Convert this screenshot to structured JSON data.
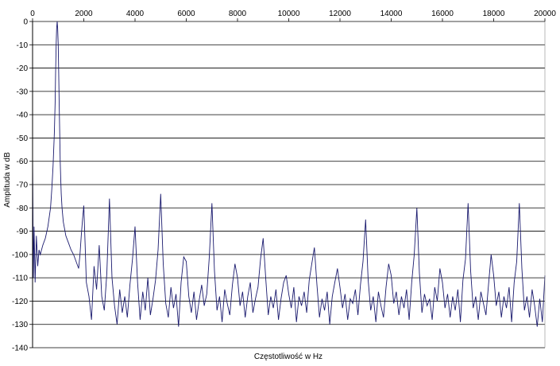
{
  "chart_data": {
    "type": "line",
    "title": "",
    "xlabel": "Częstotliwość w Hz",
    "ylabel": "Amplituda w dB",
    "xlim": [
      0,
      20000
    ],
    "ylim": [
      -140,
      0
    ],
    "x_ticks": [
      "0",
      "2000",
      "4000",
      "6000",
      "8000",
      "10000",
      "12000",
      "14000",
      "16000",
      "18000",
      "20000"
    ],
    "y_ticks": [
      "0",
      "-10",
      "-20",
      "-30",
      "-40",
      "-50",
      "-60",
      "-70",
      "-80",
      "-90",
      "-100",
      "-110",
      "-120",
      "-130",
      "-140"
    ],
    "x_axis_position": "top",
    "grid": "horizontal",
    "legend": "none",
    "colors": {
      "series": "#1a1a6e",
      "grid": "#000000",
      "axis": "#000000"
    },
    "series": [
      {
        "x": [
          0,
          30,
          60,
          100,
          150,
          200,
          250,
          300,
          400,
          500,
          600,
          700,
          750,
          800,
          850,
          880,
          900,
          920,
          940,
          960,
          980,
          1000,
          1020,
          1040,
          1060,
          1080,
          1100,
          1120,
          1150,
          1200,
          1250,
          1300,
          1400,
          1500,
          1600,
          1700,
          1800,
          1850,
          1900,
          1950,
          2000,
          2050,
          2100,
          2200,
          2300,
          2400,
          2500,
          2600,
          2700,
          2800,
          2900,
          3000,
          3100,
          3200,
          3300,
          3400,
          3500,
          3600,
          3700,
          3800,
          3900,
          4000,
          4100,
          4200,
          4300,
          4400,
          4500,
          4600,
          4700,
          4800,
          4900,
          5000,
          5100,
          5200,
          5300,
          5400,
          5500,
          5600,
          5700,
          5800,
          5900,
          6000,
          6100,
          6200,
          6300,
          6400,
          6500,
          6600,
          6700,
          6800,
          6900,
          7000,
          7100,
          7200,
          7300,
          7400,
          7500,
          7600,
          7700,
          7800,
          7900,
          8000,
          8100,
          8200,
          8300,
          8400,
          8500,
          8600,
          8700,
          8800,
          8900,
          9000,
          9100,
          9200,
          9300,
          9400,
          9500,
          9600,
          9700,
          9800,
          9900,
          10000,
          10100,
          10200,
          10300,
          10400,
          10500,
          10600,
          10700,
          10800,
          10900,
          11000,
          11100,
          11200,
          11300,
          11400,
          11500,
          11600,
          11700,
          11800,
          11900,
          12000,
          12100,
          12200,
          12300,
          12400,
          12500,
          12600,
          12700,
          12800,
          12900,
          13000,
          13100,
          13200,
          13300,
          13400,
          13500,
          13600,
          13700,
          13800,
          13900,
          14000,
          14100,
          14200,
          14300,
          14400,
          14500,
          14600,
          14700,
          14800,
          14900,
          15000,
          15100,
          15200,
          15300,
          15400,
          15500,
          15600,
          15700,
          15800,
          15900,
          16000,
          16100,
          16200,
          16300,
          16400,
          16500,
          16600,
          16700,
          16800,
          16900,
          17000,
          17100,
          17200,
          17300,
          17400,
          17500,
          17600,
          17700,
          17800,
          17900,
          18000,
          18100,
          18200,
          18300,
          18400,
          18500,
          18600,
          18700,
          18800,
          18900,
          19000,
          19100,
          19200,
          19300,
          19400,
          19500,
          19600,
          19700,
          19800,
          19900,
          20000
        ],
        "y": [
          -57,
          -110,
          -88,
          -112,
          -92,
          -105,
          -98,
          -100,
          -96,
          -93,
          -88,
          -80,
          -72,
          -62,
          -48,
          -35,
          -22,
          -10,
          -3,
          0,
          -3,
          -10,
          -22,
          -35,
          -48,
          -60,
          -68,
          -74,
          -80,
          -86,
          -89,
          -92,
          -95,
          -98,
          -100,
          -103,
          -106,
          -100,
          -92,
          -85,
          -79,
          -95,
          -112,
          -118,
          -128,
          -105,
          -115,
          -96,
          -118,
          -124,
          -108,
          -76,
          -110,
          -122,
          -130,
          -115,
          -125,
          -118,
          -127,
          -113,
          -102,
          -88,
          -112,
          -128,
          -116,
          -124,
          -110,
          -126,
          -119,
          -111,
          -98,
          -74,
          -104,
          -121,
          -127,
          -114,
          -123,
          -117,
          -131,
          -112,
          -101,
          -103,
          -118,
          -125,
          -116,
          -128,
          -120,
          -113,
          -122,
          -117,
          -101,
          -78,
          -107,
          -124,
          -118,
          -129,
          -115,
          -121,
          -126,
          -113,
          -104,
          -110,
          -122,
          -116,
          -127,
          -118,
          -112,
          -125,
          -119,
          -114,
          -102,
          -93,
          -110,
          -126,
          -118,
          -123,
          -115,
          -128,
          -119,
          -112,
          -109,
          -117,
          -123,
          -114,
          -129,
          -118,
          -122,
          -116,
          -125,
          -111,
          -104,
          -97,
          -113,
          -127,
          -119,
          -124,
          -116,
          -130,
          -118,
          -112,
          -106,
          -114,
          -123,
          -117,
          -128,
          -119,
          -121,
          -115,
          -126,
          -113,
          -103,
          -85,
          -111,
          -124,
          -118,
          -129,
          -116,
          -122,
          -127,
          -114,
          -104,
          -109,
          -121,
          -116,
          -126,
          -118,
          -123,
          -115,
          -128,
          -112,
          -100,
          -80,
          -108,
          -125,
          -117,
          -122,
          -119,
          -128,
          -114,
          -120,
          -106,
          -112,
          -123,
          -117,
          -127,
          -118,
          -124,
          -115,
          -129,
          -111,
          -102,
          -78,
          -107,
          -123,
          -118,
          -128,
          -116,
          -121,
          -126,
          -113,
          -100,
          -109,
          -122,
          -116,
          -127,
          -118,
          -123,
          -114,
          -129,
          -112,
          -103,
          -78,
          -106,
          -124,
          -118,
          -127,
          -115,
          -122,
          -131,
          -119,
          -129,
          -109
        ]
      }
    ]
  }
}
